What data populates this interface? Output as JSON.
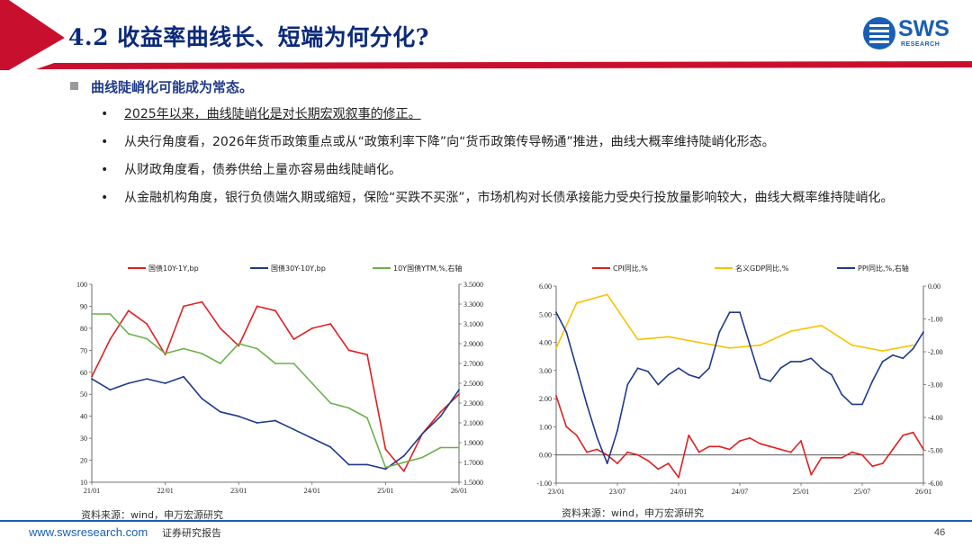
{
  "header": {
    "title": "4.2 收益率曲线长、短端为何分化?",
    "logo_text": "SWS",
    "logo_sub": "RESEARCH"
  },
  "section": {
    "heading": "曲线陡峭化可能成为常态。",
    "bullets": [
      {
        "symbol": "•",
        "text": "2025年以来，曲线陡峭化是对长期宏观叙事的修正。"
      },
      {
        "symbol": "•",
        "text": "从央行角度看，2026年货币政策重点或从“政策利率下降”向“货币政策传导畅通”推进，曲线大概率维持陡峭化形态。"
      },
      {
        "symbol": "•",
        "text": "从财政角度看，债券供给上量亦容易曲线陡峭化。"
      },
      {
        "symbol": "•",
        "text": "从金融机构角度，银行负债端久期或缩短，保险“买跌不买涨”，市场机构对长债承接能力受央行投放量影响较大，曲线大概率维持陡峭化。"
      }
    ]
  },
  "colors": {
    "brand_blue": "#1a5fb4",
    "title_navy": "#0b2a7a",
    "red": "#e02020",
    "navy": "#1f3a8a",
    "green": "#6ab04c",
    "yellow": "#f5c400"
  },
  "chart_data": [
    {
      "type": "line",
      "series": [
        {
          "name": "国债10Y-1Y,bp",
          "axis": "left",
          "color": "#e02020",
          "x": [
            "21/01",
            "21/04",
            "21/07",
            "21/10",
            "22/01",
            "22/04",
            "22/07",
            "22/10",
            "23/01",
            "23/04",
            "23/07",
            "23/10",
            "24/01",
            "24/04",
            "24/07",
            "24/10",
            "25/01",
            "25/04",
            "25/07",
            "25/10",
            "26/01"
          ],
          "values": [
            58,
            75,
            88,
            82,
            68,
            90,
            92,
            80,
            72,
            90,
            88,
            75,
            80,
            82,
            70,
            68,
            25,
            15,
            32,
            42,
            50
          ]
        },
        {
          "name": "国债30Y-10Y,bp",
          "axis": "left",
          "color": "#1f3a8a",
          "x": [
            "21/01",
            "21/04",
            "21/07",
            "21/10",
            "22/01",
            "22/04",
            "22/07",
            "22/10",
            "23/01",
            "23/04",
            "23/07",
            "23/10",
            "24/01",
            "24/04",
            "24/07",
            "24/10",
            "25/01",
            "25/04",
            "25/07",
            "25/10",
            "26/01"
          ],
          "values": [
            57,
            52,
            55,
            57,
            55,
            58,
            48,
            42,
            40,
            37,
            38,
            34,
            30,
            26,
            18,
            18,
            16,
            22,
            32,
            40,
            52
          ]
        },
        {
          "name": "10Y国债YTM,%,右轴",
          "axis": "right",
          "color": "#6ab04c",
          "x": [
            "21/01",
            "21/04",
            "21/07",
            "21/10",
            "22/01",
            "22/04",
            "22/07",
            "22/10",
            "23/01",
            "23/04",
            "23/07",
            "23/10",
            "24/01",
            "24/04",
            "24/07",
            "24/10",
            "25/01",
            "25/04",
            "25/07",
            "25/10",
            "26/01"
          ],
          "values": [
            3.2,
            3.2,
            3.0,
            2.95,
            2.8,
            2.85,
            2.8,
            2.7,
            2.9,
            2.85,
            2.7,
            2.7,
            2.5,
            2.3,
            2.25,
            2.15,
            1.65,
            1.7,
            1.75,
            1.85,
            1.85
          ]
        }
      ],
      "x_ticks": [
        "21/01",
        "22/01",
        "23/01",
        "24/01",
        "25/01",
        "26/01"
      ],
      "ylim_left": [
        10,
        100
      ],
      "y_ticks_left": [
        "100",
        "90",
        "80",
        "70",
        "60",
        "50",
        "40",
        "30",
        "20",
        "10"
      ],
      "ylim_right": [
        1.5,
        3.5
      ],
      "y_ticks_right": [
        "3.5000",
        "3.3000",
        "3.1000",
        "2.9000",
        "2.7000",
        "2.5000",
        "2.3000",
        "2.1000",
        "1.9000",
        "1.7000",
        "1.5000"
      ],
      "legend": "top",
      "source": "资料来源：wind，申万宏源研究"
    },
    {
      "type": "line",
      "series": [
        {
          "name": "CPI同比,%",
          "axis": "left",
          "color": "#e02020",
          "x": [
            "23/01",
            "23/02",
            "23/03",
            "23/04",
            "23/05",
            "23/06",
            "23/07",
            "23/08",
            "23/09",
            "23/10",
            "23/11",
            "23/12",
            "24/01",
            "24/02",
            "24/03",
            "24/04",
            "24/05",
            "24/06",
            "24/07",
            "24/08",
            "24/09",
            "24/10",
            "24/11",
            "24/12",
            "25/01",
            "25/02",
            "25/03",
            "25/04",
            "25/05",
            "25/06",
            "25/07",
            "25/08",
            "25/09",
            "25/10",
            "25/11",
            "25/12",
            "26/01"
          ],
          "values": [
            2.1,
            1.0,
            0.7,
            0.1,
            0.2,
            0.0,
            -0.3,
            0.1,
            0.0,
            -0.2,
            -0.5,
            -0.3,
            -0.8,
            0.7,
            0.1,
            0.3,
            0.3,
            0.2,
            0.5,
            0.6,
            0.4,
            0.3,
            0.2,
            0.1,
            0.5,
            -0.7,
            -0.1,
            -0.1,
            -0.1,
            0.1,
            0.0,
            -0.4,
            -0.3,
            0.2,
            0.7,
            0.8,
            0.2
          ]
        },
        {
          "name": "名义GDP同比,%",
          "axis": "left",
          "color": "#f5c400",
          "x": [
            "23/01",
            "23/03",
            "23/06",
            "23/09",
            "23/12",
            "24/03",
            "24/06",
            "24/09",
            "24/12",
            "25/03",
            "25/06",
            "25/09",
            "25/12"
          ],
          "values": [
            3.8,
            5.4,
            5.7,
            4.1,
            4.2,
            4.0,
            3.8,
            3.9,
            4.4,
            4.6,
            3.9,
            3.7,
            3.9
          ]
        },
        {
          "name": "PPI同比,%,右轴",
          "axis": "right",
          "color": "#1f3a8a",
          "x": [
            "23/01",
            "23/02",
            "23/03",
            "23/04",
            "23/05",
            "23/06",
            "23/07",
            "23/08",
            "23/09",
            "23/10",
            "23/11",
            "23/12",
            "24/01",
            "24/02",
            "24/03",
            "24/04",
            "24/05",
            "24/06",
            "24/07",
            "24/08",
            "24/09",
            "24/10",
            "24/11",
            "24/12",
            "25/01",
            "25/02",
            "25/03",
            "25/04",
            "25/05",
            "25/06",
            "25/07",
            "25/08",
            "25/09",
            "25/10",
            "25/11",
            "25/12",
            "26/01"
          ],
          "values": [
            -0.8,
            -1.4,
            -2.5,
            -3.6,
            -4.6,
            -5.4,
            -4.4,
            -3.0,
            -2.5,
            -2.6,
            -3.0,
            -2.7,
            -2.5,
            -2.7,
            -2.8,
            -2.5,
            -1.4,
            -0.8,
            -0.8,
            -1.8,
            -2.8,
            -2.9,
            -2.5,
            -2.3,
            -2.3,
            -2.2,
            -2.5,
            -2.7,
            -3.3,
            -3.6,
            -3.6,
            -2.9,
            -2.3,
            -2.1,
            -2.2,
            -1.9,
            -1.4
          ]
        }
      ],
      "x_ticks": [
        "23/01",
        "23/07",
        "24/01",
        "24/07",
        "25/01",
        "25/07",
        "26/01"
      ],
      "ylim_left": [
        -1,
        6
      ],
      "y_ticks_left": [
        "6.00",
        "5.00",
        "4.00",
        "3.00",
        "2.00",
        "1.00",
        "0.00",
        "-1.00"
      ],
      "ylim_right": [
        -6,
        0
      ],
      "y_ticks_right": [
        "0.00",
        "-1.00",
        "-2.00",
        "-3.00",
        "-4.00",
        "-5.00",
        "-6.00"
      ],
      "legend": "top",
      "source": "资料来源：wind，申万宏源研究"
    }
  ],
  "footer": {
    "url": "www.swsresearch.com",
    "doc_type": "证券研究报告",
    "page": "46"
  }
}
